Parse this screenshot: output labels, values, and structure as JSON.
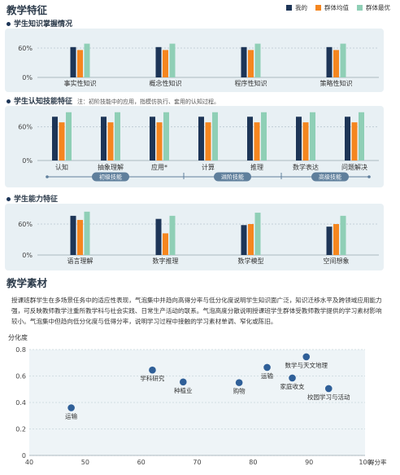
{
  "header": {
    "title": "教学特征",
    "legend": [
      {
        "label": "我的",
        "color": "#1d3557"
      },
      {
        "label": "群体均值",
        "color": "#f5861f"
      },
      {
        "label": "群体最优",
        "color": "#8fcfb6"
      }
    ]
  },
  "sections": {
    "knowledge": {
      "title": "学生知识掌握情况"
    },
    "cognitive": {
      "title": "学生认知技能特征",
      "note": "注：初阶技能中的应用，指模仿执行、套用的认知过程。",
      "groups": [
        {
          "label": "初级技能"
        },
        {
          "label": "进阶技能"
        },
        {
          "label": "高级技能"
        }
      ]
    },
    "ability": {
      "title": "学生能力特征"
    },
    "material": {
      "title": "教学素材",
      "paragraph": "授课班群学生在多场景任务中的适应性表现，气泡集中并趋向高得分率与低分化度说明学生知识面广泛，知识迁移水平及跨领域应用能力强，可反映教师教学注重所教学科与社会实践、日常生产活动的联系。气泡高度分散说明授课班学生群体受教师教学提供的学习素材影响较小。气泡集中但趋向低分化度与低得分率，说明学习过程中接触的学习素材单调、窄化或陈旧。"
    }
  },
  "chart_data": [
    {
      "type": "bar",
      "id": "knowledge",
      "ylim": [
        0,
        90
      ],
      "yticks": [
        "60%",
        "0%"
      ],
      "categories": [
        "事实性知识",
        "概念性知识",
        "程序性知识",
        "策略性知识"
      ],
      "series": [
        {
          "name": "我的",
          "values": [
            62,
            62,
            62,
            62
          ]
        },
        {
          "name": "群体均值",
          "values": [
            56,
            56,
            56,
            56
          ]
        },
        {
          "name": "群体最优",
          "values": [
            69,
            69,
            69,
            69
          ]
        }
      ]
    },
    {
      "type": "bar",
      "id": "cognitive",
      "ylim": [
        0,
        90
      ],
      "yticks": [
        "60%",
        "0%"
      ],
      "categories": [
        "认知",
        "抽象理解",
        "应用*",
        "计算",
        "推理",
        "数学表达",
        "问题解决"
      ],
      "series": [
        {
          "name": "我的",
          "values": [
            78,
            78,
            78,
            78,
            78,
            78,
            78
          ]
        },
        {
          "name": "群体均值",
          "values": [
            68,
            68,
            68,
            68,
            68,
            68,
            68
          ]
        },
        {
          "name": "群体最优",
          "values": [
            86,
            86,
            86,
            86,
            86,
            86,
            86
          ]
        }
      ]
    },
    {
      "type": "bar",
      "id": "ability",
      "ylim": [
        0,
        90
      ],
      "yticks": [
        "60%",
        "0%"
      ],
      "categories": [
        "语言理解",
        "数字推理",
        "数学模型",
        "空间想象"
      ],
      "series": [
        {
          "name": "我的",
          "values": [
            76,
            70,
            58,
            55
          ]
        },
        {
          "name": "群体均值",
          "values": [
            68,
            42,
            60,
            60
          ]
        },
        {
          "name": "群体最优",
          "values": [
            84,
            76,
            82,
            76
          ]
        }
      ]
    },
    {
      "type": "scatter",
      "id": "material",
      "ylabel": "分化度",
      "xlabel": "得分率",
      "xlim": [
        40,
        100
      ],
      "ylim": [
        0,
        0.8
      ],
      "xticks": [
        "40",
        "50",
        "60",
        "70",
        "80",
        "90",
        "100"
      ],
      "yticks": [
        "0",
        "0.2",
        "0.4",
        "0.6",
        "0.8"
      ],
      "points": [
        {
          "x": 47.5,
          "y": 0.36,
          "label": "运输"
        },
        {
          "x": 62,
          "y": 0.645,
          "label": "学科研究"
        },
        {
          "x": 67.5,
          "y": 0.555,
          "label": "种植业"
        },
        {
          "x": 77.5,
          "y": 0.55,
          "label": "购物"
        },
        {
          "x": 82.5,
          "y": 0.665,
          "label": "运输"
        },
        {
          "x": 89.5,
          "y": 0.745,
          "label": "数学与天文地理"
        },
        {
          "x": 87,
          "y": 0.585,
          "label": "家庭收支"
        },
        {
          "x": 93.5,
          "y": 0.505,
          "label": "校园学习与活动"
        }
      ]
    }
  ]
}
